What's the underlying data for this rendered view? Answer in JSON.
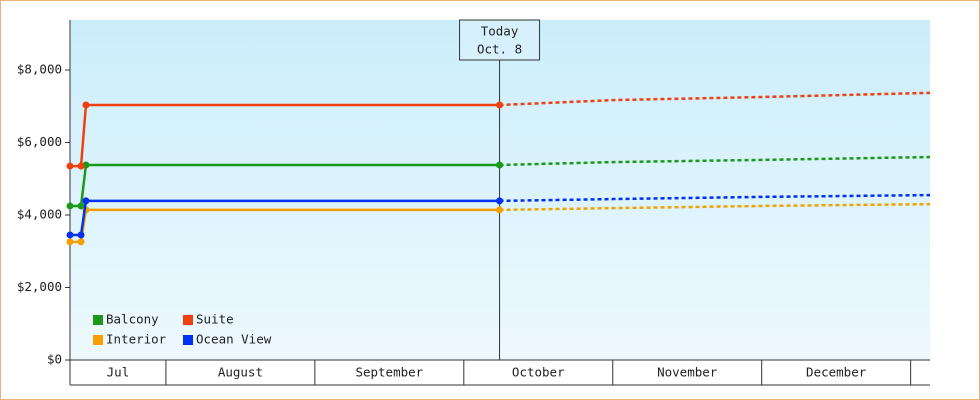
{
  "chart_data": {
    "type": "line",
    "categories": [
      "Jul",
      "August",
      "September",
      "October",
      "November",
      "December"
    ],
    "xlim": [
      0.356,
      6.13
    ],
    "xticks": [
      1,
      2,
      3,
      4,
      5,
      6
    ],
    "ylim": [
      0,
      9380
    ],
    "yticks": [
      {
        "value": 0,
        "label": "$0"
      },
      {
        "value": 2000,
        "label": "$2,000"
      },
      {
        "value": 4000,
        "label": "$4,000"
      },
      {
        "value": 6000,
        "label": "$6,000"
      },
      {
        "value": 8000,
        "label": "$8,000"
      }
    ],
    "grid": false,
    "legend": "lower left",
    "today": {
      "x": 3.24,
      "label": [
        "Today",
        "Oct. 8"
      ]
    },
    "x": [
      0.356,
      0.43,
      0.463,
      3.24,
      4.0,
      5.0,
      6.13
    ],
    "series": [
      {
        "name": "Balcony",
        "color": "#1a9a1a",
        "values": [
          4250,
          4250,
          5380,
          5380,
          5460,
          5520,
          5600
        ]
      },
      {
        "name": "Suite",
        "color": "#f04010",
        "values": [
          5350,
          5350,
          7035,
          7035,
          7170,
          7255,
          7370
        ]
      },
      {
        "name": "Interior",
        "color": "#f5a000",
        "values": [
          3260,
          3260,
          4140,
          4140,
          4190,
          4250,
          4300
        ]
      },
      {
        "name": "Ocean View",
        "color": "#0030f0",
        "values": [
          3450,
          3450,
          4390,
          4390,
          4440,
          4500,
          4550
        ]
      }
    ]
  }
}
